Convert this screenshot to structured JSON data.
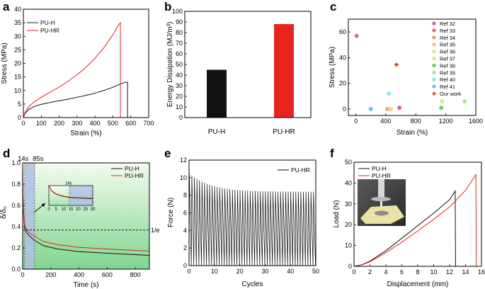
{
  "colors": {
    "black": "#111111",
    "red": "#e8231d",
    "green_top": "#f4fbef",
    "green_bottom": "#7fd58f",
    "blue_band": "#aebfe3"
  },
  "chart_data": [
    {
      "id": "a",
      "label": "a",
      "type": "line",
      "xlabel": "Strain (%)",
      "ylabel": "Stress (MPa)",
      "xlim": [
        0,
        700
      ],
      "ylim": [
        0,
        40
      ],
      "xticks": [
        "0",
        "100",
        "200",
        "300",
        "400",
        "500",
        "600",
        "700"
      ],
      "yticks": [
        "0",
        "5",
        "10",
        "15",
        "20",
        "25",
        "30",
        "35",
        "40"
      ],
      "legend": [
        "PU-H",
        "PU-HR"
      ],
      "series": [
        {
          "name": "PU-H",
          "color": "#111111",
          "x": [
            0,
            10,
            30,
            60,
            100,
            150,
            200,
            250,
            300,
            350,
            400,
            450,
            500,
            550,
            575,
            582,
            582
          ],
          "y": [
            0,
            1.6,
            3.0,
            4.1,
            4.9,
            5.6,
            6.2,
            6.8,
            7.5,
            8.2,
            9.0,
            10.0,
            11.2,
            12.6,
            13.1,
            13.0,
            0
          ]
        },
        {
          "name": "PU-HR",
          "color": "#e8231d",
          "x": [
            0,
            10,
            30,
            60,
            100,
            150,
            200,
            250,
            300,
            350,
            400,
            450,
            500,
            530,
            542,
            542
          ],
          "y": [
            0,
            2.0,
            4.0,
            5.8,
            7.5,
            9.4,
            11.3,
            13.4,
            15.8,
            18.6,
            21.9,
            25.8,
            30.6,
            34.0,
            35.0,
            0
          ]
        }
      ]
    },
    {
      "id": "b",
      "label": "b",
      "type": "bar",
      "ylabel": "Energy Dissipation (MJ/m³)",
      "categories": [
        "PU-H",
        "PU-HR"
      ],
      "values": [
        45,
        88
      ],
      "ylim": [
        0,
        100
      ],
      "yticks": [
        "0",
        "10",
        "20",
        "30",
        "40",
        "50",
        "60",
        "70",
        "80",
        "90",
        "100"
      ]
    },
    {
      "id": "c",
      "label": "c",
      "type": "scatter",
      "xlabel": "Strain (%)",
      "ylabel": "Stress (MPa)",
      "xlim": [
        -100,
        1600
      ],
      "ylim": [
        -5,
        70
      ],
      "xticks": [
        "0",
        "400",
        "800",
        "1200",
        "1600"
      ],
      "yticks": [
        "0",
        "20",
        "40",
        "60"
      ],
      "points": [
        {
          "name": "Ref 32",
          "x": 580,
          "y": 1,
          "color": "#e15aa5",
          "shape": "circle"
        },
        {
          "name": "Ref 33",
          "x": 10,
          "y": 57,
          "color": "#e07070",
          "shape": "circle"
        },
        {
          "name": "Ref 34",
          "x": 420,
          "y": 0,
          "color": "#e59a6e",
          "shape": "circle"
        },
        {
          "name": "Ref 35",
          "x": 440,
          "y": 0,
          "color": "#f0c08a",
          "shape": "circle"
        },
        {
          "name": "Ref 36",
          "x": 470,
          "y": 0,
          "color": "#ecd79a",
          "shape": "circle"
        },
        {
          "name": "Ref 37",
          "x": 1150,
          "y": 6,
          "color": "#d6ea78",
          "shape": "circle"
        },
        {
          "name": "Ref 38",
          "x": 1140,
          "y": 1,
          "color": "#5fd35a",
          "shape": "circle"
        },
        {
          "name": "Ref 39",
          "x": 1450,
          "y": 6,
          "color": "#a2ea8c",
          "shape": "circle"
        },
        {
          "name": "Ref 40",
          "x": 440,
          "y": 12,
          "color": "#8ce6ea",
          "shape": "circle"
        },
        {
          "name": "Ref 41",
          "x": 200,
          "y": 0,
          "color": "#6fc1ea",
          "shape": "circle"
        },
        {
          "name": "Our work",
          "x": 542,
          "y": 35,
          "color": "#e8231d",
          "shape": "star"
        }
      ]
    },
    {
      "id": "d",
      "label": "d",
      "type": "line",
      "xlabel": "Time (s)",
      "ylabel": "δ/δ₀",
      "xlim": [
        0,
        900
      ],
      "ylim": [
        0,
        1
      ],
      "xticks": [
        "0",
        "200",
        "400",
        "600",
        "800"
      ],
      "yticks": [
        "0.0",
        "0.2",
        "0.4",
        "0.6",
        "0.8",
        "1.0"
      ],
      "legend": [
        "PU-H",
        "PU-HR"
      ],
      "annotations": {
        "t1": "14s",
        "t2": "85s",
        "ref_line": "1/e",
        "ref_value": 0.368,
        "t1_value": 14,
        "t2_value": 85
      },
      "series": [
        {
          "name": "PU-H",
          "color": "#111111",
          "x": [
            0,
            2,
            5,
            10,
            14,
            20,
            30,
            50,
            85,
            150,
            250,
            400,
            600,
            900
          ],
          "y": [
            1.0,
            0.72,
            0.56,
            0.45,
            0.4,
            0.37,
            0.34,
            0.31,
            0.27,
            0.22,
            0.19,
            0.165,
            0.15,
            0.13
          ]
        },
        {
          "name": "PU-HR",
          "color": "#e8231d",
          "x": [
            0,
            2,
            5,
            10,
            14,
            20,
            30,
            50,
            85,
            150,
            250,
            400,
            600,
            900
          ],
          "y": [
            1.0,
            0.74,
            0.58,
            0.47,
            0.42,
            0.39,
            0.37,
            0.34,
            0.31,
            0.26,
            0.23,
            0.205,
            0.19,
            0.17
          ]
        }
      ],
      "inset": {
        "xlim": [
          0,
          30
        ],
        "ylim": [
          0,
          1
        ],
        "xticks": [
          "0",
          "5",
          "10",
          "15",
          "20",
          "25",
          "30"
        ],
        "mark": "14s"
      }
    },
    {
      "id": "e",
      "label": "e",
      "type": "line",
      "xlabel": "Cycles",
      "ylabel": "Force (N)",
      "xlim": [
        0,
        50
      ],
      "ylim": [
        0,
        12
      ],
      "xticks": [
        "0",
        "10",
        "20",
        "30",
        "40",
        "50"
      ],
      "yticks": [
        "0",
        "2",
        "4",
        "6",
        "8",
        "10",
        "12"
      ],
      "legend": [
        "PU-HR"
      ],
      "series": [
        {
          "name": "PU-HR",
          "color": "#111111",
          "cycles": 50,
          "peaks_first": 10.5,
          "peaks_last": 8.4,
          "min": 0
        }
      ]
    },
    {
      "id": "f",
      "label": "f",
      "type": "line",
      "xlabel": "Displacement (mm)",
      "ylabel": "Load (N)",
      "xlim": [
        0,
        16
      ],
      "ylim": [
        0,
        50
      ],
      "xticks": [
        "0",
        "2",
        "4",
        "6",
        "8",
        "10",
        "12",
        "14",
        "16"
      ],
      "yticks": [
        "0",
        "10",
        "20",
        "30",
        "40",
        "50"
      ],
      "legend": [
        "PU-H",
        "PU-HR"
      ],
      "series": [
        {
          "name": "PU-H",
          "color": "#111111",
          "x": [
            0,
            1,
            2,
            4,
            6,
            8,
            10,
            12,
            12.7,
            12.75
          ],
          "y": [
            0,
            0.8,
            2.5,
            7.5,
            13.5,
            19.5,
            25.5,
            32,
            36.2,
            0
          ]
        },
        {
          "name": "PU-HR",
          "color": "#e8231d",
          "x": [
            0,
            1,
            2,
            4,
            6,
            8,
            10,
            12,
            14,
            15.3,
            15.35
          ],
          "y": [
            0,
            0.7,
            2.2,
            6.6,
            11.6,
            17,
            22.6,
            28.5,
            36.5,
            44,
            0
          ]
        }
      ]
    }
  ]
}
